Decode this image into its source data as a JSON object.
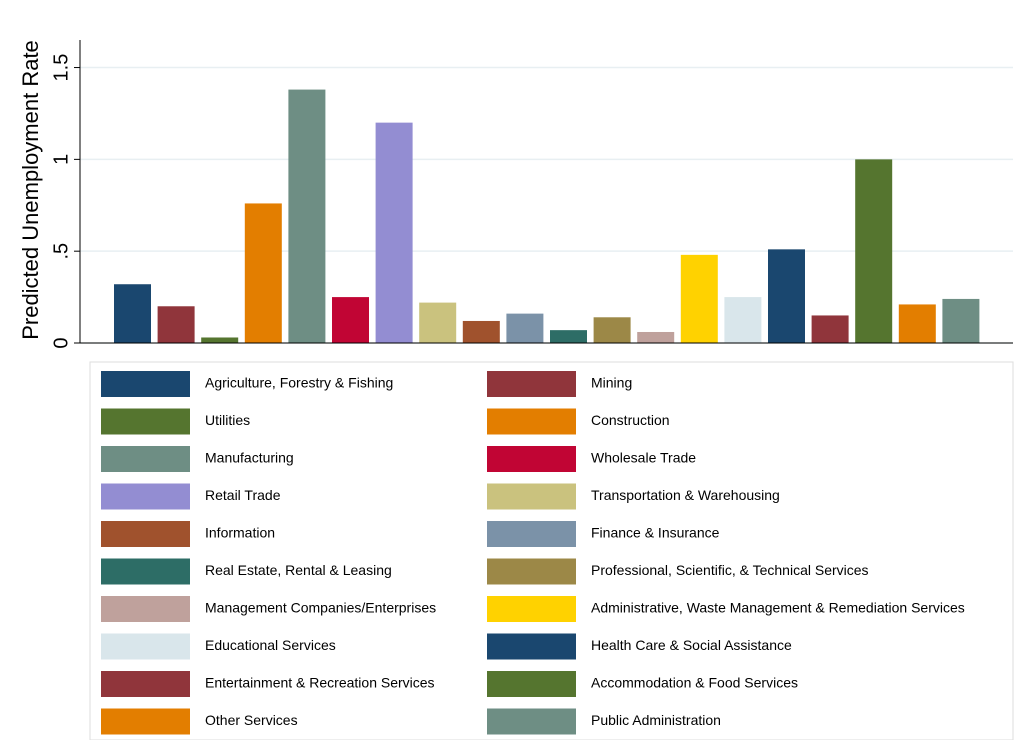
{
  "chart_data": {
    "type": "bar",
    "y_label": "Predicted Unemployment Rate",
    "categories": [
      "Agriculture, Forestry & Fishing",
      "Mining",
      "Utilities",
      "Construction",
      "Manufacturing",
      "Wholesale Trade",
      "Retail Trade",
      "Transportation & Warehousing",
      "Information",
      "Finance & Insurance",
      "Real Estate, Rental & Leasing",
      "Professional, Scientific, & Technical Services",
      "Management Companies/Enterprises",
      "Administrative, Waste Management & Remediation Services",
      "Educational Services",
      "Health Care & Social Assistance",
      "Entertainment & Recreation Services",
      "Accommodation & Food Services",
      "Other Services",
      "Public Administration"
    ],
    "values": [
      0.32,
      0.2,
      0.03,
      0.76,
      1.38,
      0.25,
      1.2,
      0.22,
      0.12,
      0.16,
      0.07,
      0.14,
      0.06,
      0.48,
      0.25,
      0.51,
      0.15,
      1.0,
      0.21,
      0.24
    ],
    "colors": [
      "#1a476f",
      "#90353b",
      "#55752f",
      "#e37e00",
      "#6e8e84",
      "#c10534",
      "#938dd2",
      "#cac27e",
      "#a0522d",
      "#7b92a8",
      "#2d6d66",
      "#9c8847",
      "#bfa19c",
      "#ffd200",
      "#d9e6eb",
      "#1a476f",
      "#90353b",
      "#55752f",
      "#e37e00",
      "#6e8e84"
    ],
    "ylim": [
      0,
      1.65
    ],
    "yticks": [
      0,
      {
        "value": 0.5,
        "label": ".5"
      },
      1,
      1.5
    ],
    "grid": true,
    "legend_position": "bottom"
  }
}
